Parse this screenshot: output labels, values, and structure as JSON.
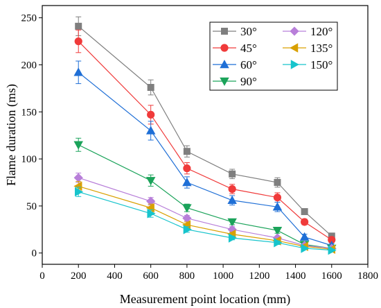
{
  "chart_data": {
    "type": "line",
    "title": "",
    "xlabel": "Measurement point location (mm)",
    "ylabel": "Flame duration (ms)",
    "xlim": [
      0,
      1800
    ],
    "ylim": [
      -12,
      263
    ],
    "xticks": [
      0,
      200,
      400,
      600,
      800,
      1000,
      1200,
      1400,
      1600,
      1800
    ],
    "yticks": [
      0,
      50,
      100,
      150,
      200,
      250
    ],
    "x": [
      200,
      600,
      800,
      1050,
      1300,
      1450,
      1600
    ],
    "grid": false,
    "legend_position": "top-right",
    "series": [
      {
        "name": "30°",
        "color": "#7f7f7f",
        "marker": "square",
        "values": [
          241,
          176,
          108,
          84,
          75,
          44,
          18
        ],
        "errors": [
          10,
          8,
          6,
          5,
          5,
          3,
          2
        ]
      },
      {
        "name": "45°",
        "color": "#f03a3a",
        "marker": "circle",
        "values": [
          225,
          147,
          90,
          68,
          59,
          33,
          14
        ],
        "errors": [
          12,
          10,
          6,
          5,
          5,
          3,
          2
        ]
      },
      {
        "name": "60°",
        "color": "#1f6fd6",
        "marker": "triangle-up",
        "values": [
          192,
          130,
          75,
          56,
          49,
          17,
          8
        ],
        "errors": [
          12,
          10,
          6,
          5,
          5,
          3,
          2
        ]
      },
      {
        "name": "90°",
        "color": "#1ba35a",
        "marker": "triangle-down",
        "values": [
          115,
          77,
          48,
          33,
          24,
          9,
          5
        ],
        "errors": [
          7,
          6,
          4,
          3,
          3,
          2,
          1
        ]
      },
      {
        "name": "120°",
        "color": "#b87fd9",
        "marker": "diamond",
        "values": [
          80,
          55,
          37,
          25,
          16,
          8,
          5
        ],
        "errors": [
          5,
          4,
          3,
          3,
          2,
          1,
          1
        ]
      },
      {
        "name": "135°",
        "color": "#d9a000",
        "marker": "triangle-left",
        "values": [
          71,
          48,
          30,
          20,
          13,
          7,
          4
        ],
        "errors": [
          5,
          4,
          3,
          2,
          2,
          1,
          1
        ]
      },
      {
        "name": "150°",
        "color": "#17c4cc",
        "marker": "triangle-right",
        "values": [
          65,
          42,
          25,
          16,
          11,
          5,
          3
        ],
        "errors": [
          5,
          4,
          3,
          2,
          2,
          1,
          1
        ]
      }
    ]
  }
}
